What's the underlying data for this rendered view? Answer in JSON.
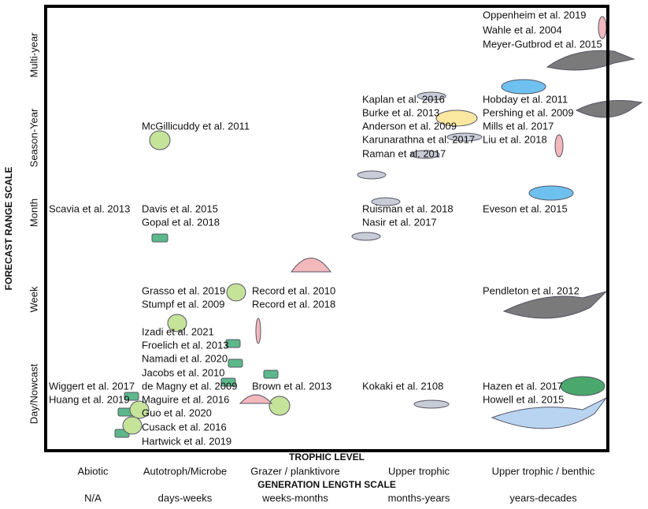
{
  "y_axis": {
    "title": "FORECAST RANGE SCALE",
    "labels": [
      "Multi-year",
      "Season-Year",
      "Month",
      "Week",
      "Day/Nowcast"
    ]
  },
  "x_axis": {
    "title": "TROPHIC LEVEL",
    "labels": [
      "Abiotic",
      "Autotroph/Microbe",
      "Grazer / planktivore",
      "Upper trophic",
      "Upper trophic / benthic"
    ],
    "second_title": "GENERATION LENGTH SCALE",
    "second_labels": [
      "N/A",
      "days-weeks",
      "weeks-months",
      "months-years",
      "years-decades"
    ]
  },
  "citations": [
    "Oppenheim et al. 2019",
    "Wahle et al. 2004",
    "Meyer-Gutbrod et al. 2015",
    "Kaplan et al. 2016",
    "Burke et al. 2013",
    "Anderson et al. 2009",
    "Karunarathna et al. 2017",
    "Raman et al. 2017",
    "Hobday et al. 2011",
    "Pershing et al. 2009",
    "Mills et al. 2017",
    "Liu et al. 2018",
    "McGillicuddy et al. 2011",
    "Scavia et al. 2013",
    "Davis et al. 2015",
    "Gopal et al. 2018",
    "Ruisman et al. 2018",
    "Nasir et al. 2017",
    "Eveson et al. 2015",
    "Grasso et al. 2019",
    "Stumpf et al. 2009",
    "Record et al. 2010",
    "Record et al. 2018",
    "Pendleton et al. 2012",
    "Izadi et al. 2021",
    "Froelich et al. 2013",
    "Namadi et al. 2020",
    "Jacobs et al. 2010",
    "de Magny et al. 2009",
    "Maguire et al. 2016",
    "Guo et al. 2020",
    "Cusack et al. 2016",
    "Hartwick et al. 2019",
    "Wiggert et al. 2017",
    "Huang et al. 2019",
    "Brown et al. 2013",
    "Kokaki et al. 2108",
    "Hazen et al. 2017",
    "Howell et al. 2015"
  ]
}
